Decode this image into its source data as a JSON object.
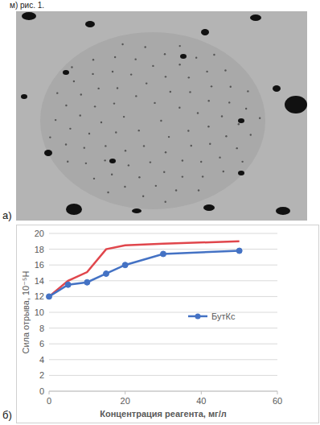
{
  "page": {
    "caption_fragment": "м)     рис. 1.",
    "panel_a_label": "а)",
    "panel_b_label": "б)"
  },
  "chart_data": {
    "type": "line",
    "y_label": "Сила отрыва, 10⁻⁵Н",
    "x_label": "Концентрация реагента, мг/л",
    "x": [
      0,
      5,
      10,
      15,
      20,
      30,
      50
    ],
    "series": [
      {
        "name": "БутКс",
        "color": "#4472c4",
        "marker": "circle",
        "values": [
          12,
          13.5,
          13.8,
          14.9,
          16,
          17.4,
          17.8
        ]
      },
      {
        "color": "#e0464c",
        "marker": "none",
        "values": [
          12,
          14,
          15.1,
          18,
          18.5,
          18.7,
          19
        ]
      }
    ],
    "xlim": [
      0,
      60
    ],
    "xticks": [
      0,
      20,
      40,
      60
    ],
    "ylim": [
      0,
      20
    ],
    "yticks": [
      0,
      2,
      4,
      6,
      8,
      10,
      12,
      14,
      16,
      18,
      20
    ],
    "grid": true,
    "legend": "right"
  }
}
